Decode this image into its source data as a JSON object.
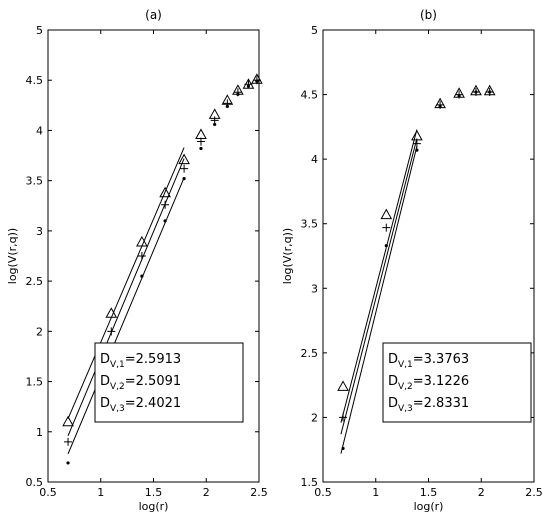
{
  "chart_data": [
    {
      "type": "scatter",
      "title": "(a)",
      "xlabel": "log(r)",
      "ylabel": "log(V(r,q))",
      "xlim": [
        0.5,
        2.5
      ],
      "ylim": [
        0.5,
        5
      ],
      "xticks": [
        "0.5",
        "1",
        "1.5",
        "2",
        "2.5"
      ],
      "yticks": [
        "0.5",
        "1",
        "1.5",
        "2",
        "2.5",
        "3",
        "3.5",
        "4",
        "4.5",
        "5"
      ],
      "grid": false,
      "series": [
        {
          "marker": "triangle",
          "x": [
            0.69,
            1.1,
            1.39,
            1.61,
            1.79,
            1.95,
            2.08,
            2.2,
            2.3,
            2.4,
            2.48
          ],
          "y": [
            1.1,
            2.18,
            2.89,
            3.38,
            3.71,
            3.96,
            4.16,
            4.3,
            4.4,
            4.46,
            4.51
          ]
        },
        {
          "marker": "plus",
          "x": [
            0.69,
            1.1,
            1.39,
            1.61,
            1.79,
            1.95,
            2.08,
            2.2,
            2.3,
            2.4,
            2.48
          ],
          "y": [
            0.9,
            2.0,
            2.75,
            3.26,
            3.62,
            3.89,
            4.1,
            4.27,
            4.38,
            4.46,
            4.5
          ]
        },
        {
          "marker": "dot",
          "x": [
            0.69,
            1.1,
            1.39,
            1.61,
            1.79,
            1.95,
            2.08,
            2.2,
            2.3,
            2.4,
            2.48
          ],
          "y": [
            0.69,
            1.8,
            2.55,
            3.1,
            3.52,
            3.82,
            4.06,
            4.24,
            4.36,
            4.44,
            4.49
          ]
        }
      ],
      "fit_lines": [
        {
          "x": [
            0.69,
            1.79
          ],
          "y": [
            1.13,
            3.83
          ]
        },
        {
          "x": [
            0.69,
            1.79
          ],
          "y": [
            0.96,
            3.72
          ]
        },
        {
          "x": [
            0.69,
            1.79
          ],
          "y": [
            0.78,
            3.53
          ]
        }
      ],
      "legend": {
        "entries": [
          {
            "base": "D",
            "sub": "V,1",
            "value": "=2.5913"
          },
          {
            "base": "D",
            "sub": "V,2",
            "value": "=2.5091"
          },
          {
            "base": "D",
            "sub": "V,3",
            "value": "=2.4021"
          }
        ]
      }
    },
    {
      "type": "scatter",
      "title": "(b)",
      "xlabel": "log(r)",
      "ylabel": "log(V(r,q))",
      "xlim": [
        0.5,
        2.5
      ],
      "ylim": [
        1.5,
        5
      ],
      "xticks": [
        "0.5",
        "1",
        "1.5",
        "2",
        "2.5"
      ],
      "yticks": [
        "1.5",
        "2",
        "2.5",
        "3",
        "3.5",
        "4",
        "4.5",
        "5"
      ],
      "grid": false,
      "series": [
        {
          "marker": "triangle",
          "x": [
            0.69,
            1.1,
            1.39,
            1.61,
            1.79,
            1.95,
            2.08
          ],
          "y": [
            2.24,
            3.57,
            4.18,
            4.43,
            4.51,
            4.53,
            4.53
          ]
        },
        {
          "marker": "plus",
          "x": [
            0.69,
            1.1,
            1.39,
            1.61,
            1.79,
            1.95,
            2.08
          ],
          "y": [
            2.0,
            3.47,
            4.12,
            4.42,
            4.5,
            4.52,
            4.52
          ]
        },
        {
          "marker": "dot",
          "x": [
            0.69,
            1.1,
            1.39,
            1.61,
            1.79,
            1.95,
            2.08
          ],
          "y": [
            1.76,
            3.33,
            4.07,
            4.41,
            4.49,
            4.52,
            4.52
          ]
        }
      ],
      "fit_lines": [
        {
          "x": [
            0.67,
            1.39
          ],
          "y": [
            1.96,
            4.23
          ]
        },
        {
          "x": [
            0.67,
            1.39
          ],
          "y": [
            1.87,
            4.16
          ]
        },
        {
          "x": [
            0.67,
            1.39
          ],
          "y": [
            1.72,
            4.1
          ]
        }
      ],
      "legend": {
        "entries": [
          {
            "base": "D",
            "sub": "V,1",
            "value": "=3.3763"
          },
          {
            "base": "D",
            "sub": "V,2",
            "value": "=3.1226"
          },
          {
            "base": "D",
            "sub": "V,3",
            "value": "=2.8331"
          }
        ]
      }
    }
  ]
}
